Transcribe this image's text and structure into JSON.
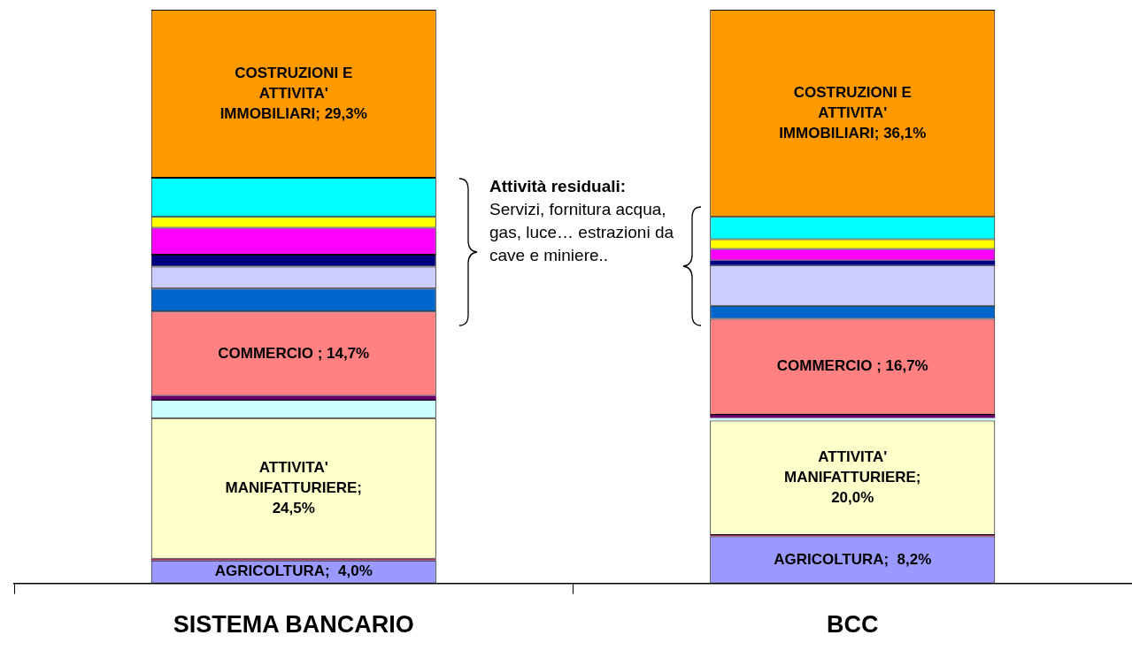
{
  "chart_data": {
    "type": "bar",
    "stacked": true,
    "categories": [
      "SISTEMA BANCARIO",
      "BCC"
    ],
    "ylim": [
      0,
      100
    ],
    "tick_labels": "x",
    "grid": false,
    "legend": false,
    "series": [
      {
        "color": "#9999ff",
        "values": [
          4.0,
          8.2
        ],
        "value_labels": [
          "AGRICOLTURA;  4,0%",
          "AGRICOLTURA;  8,2%"
        ]
      },
      {
        "color": "#993366",
        "values": [
          0.3,
          0.2
        ]
      },
      {
        "color": "#ffffcc",
        "values": [
          24.5,
          20.0
        ],
        "value_labels": [
          "ATTIVITA'\nMANIFATTURIERE;\n24,5%",
          "ATTIVITA'\nMANIFATTURIERE;\n20,0%"
        ]
      },
      {
        "color": "#ccffff",
        "values": [
          3.2,
          0.4
        ]
      },
      {
        "color": "#660066",
        "values": [
          0.7,
          0.6
        ]
      },
      {
        "color": "#ff8080",
        "values": [
          14.7,
          16.7
        ],
        "value_labels": [
          "COMMERCIO ; 14,7%",
          "COMMERCIO ; 16,7%"
        ]
      },
      {
        "color": "#0066cc",
        "values": [
          4.0,
          2.3
        ]
      },
      {
        "color": "#ccccff",
        "values": [
          3.8,
          7.1
        ]
      },
      {
        "color": "#000080",
        "values": [
          2.1,
          0.8
        ]
      },
      {
        "color": "#ff00ff",
        "values": [
          4.7,
          2.0
        ]
      },
      {
        "color": "#ffff00",
        "values": [
          1.9,
          1.7
        ]
      },
      {
        "color": "#00ffff",
        "values": [
          6.8,
          3.9
        ]
      },
      {
        "color": "#ff9900",
        "values": [
          29.3,
          36.1
        ],
        "value_labels": [
          "COSTRUZIONI E\nATTIVITA'\nIMMOBILIARI; 29,3%",
          "COSTRUZIONI E\nATTIVITA'\nIMMOBILIARI; 36,1%"
        ]
      }
    ],
    "annotations": [
      "Attività residuali:",
      "Servizi, fornitura acqua, gas, luce… estrazioni da cave e miniere.."
    ]
  }
}
